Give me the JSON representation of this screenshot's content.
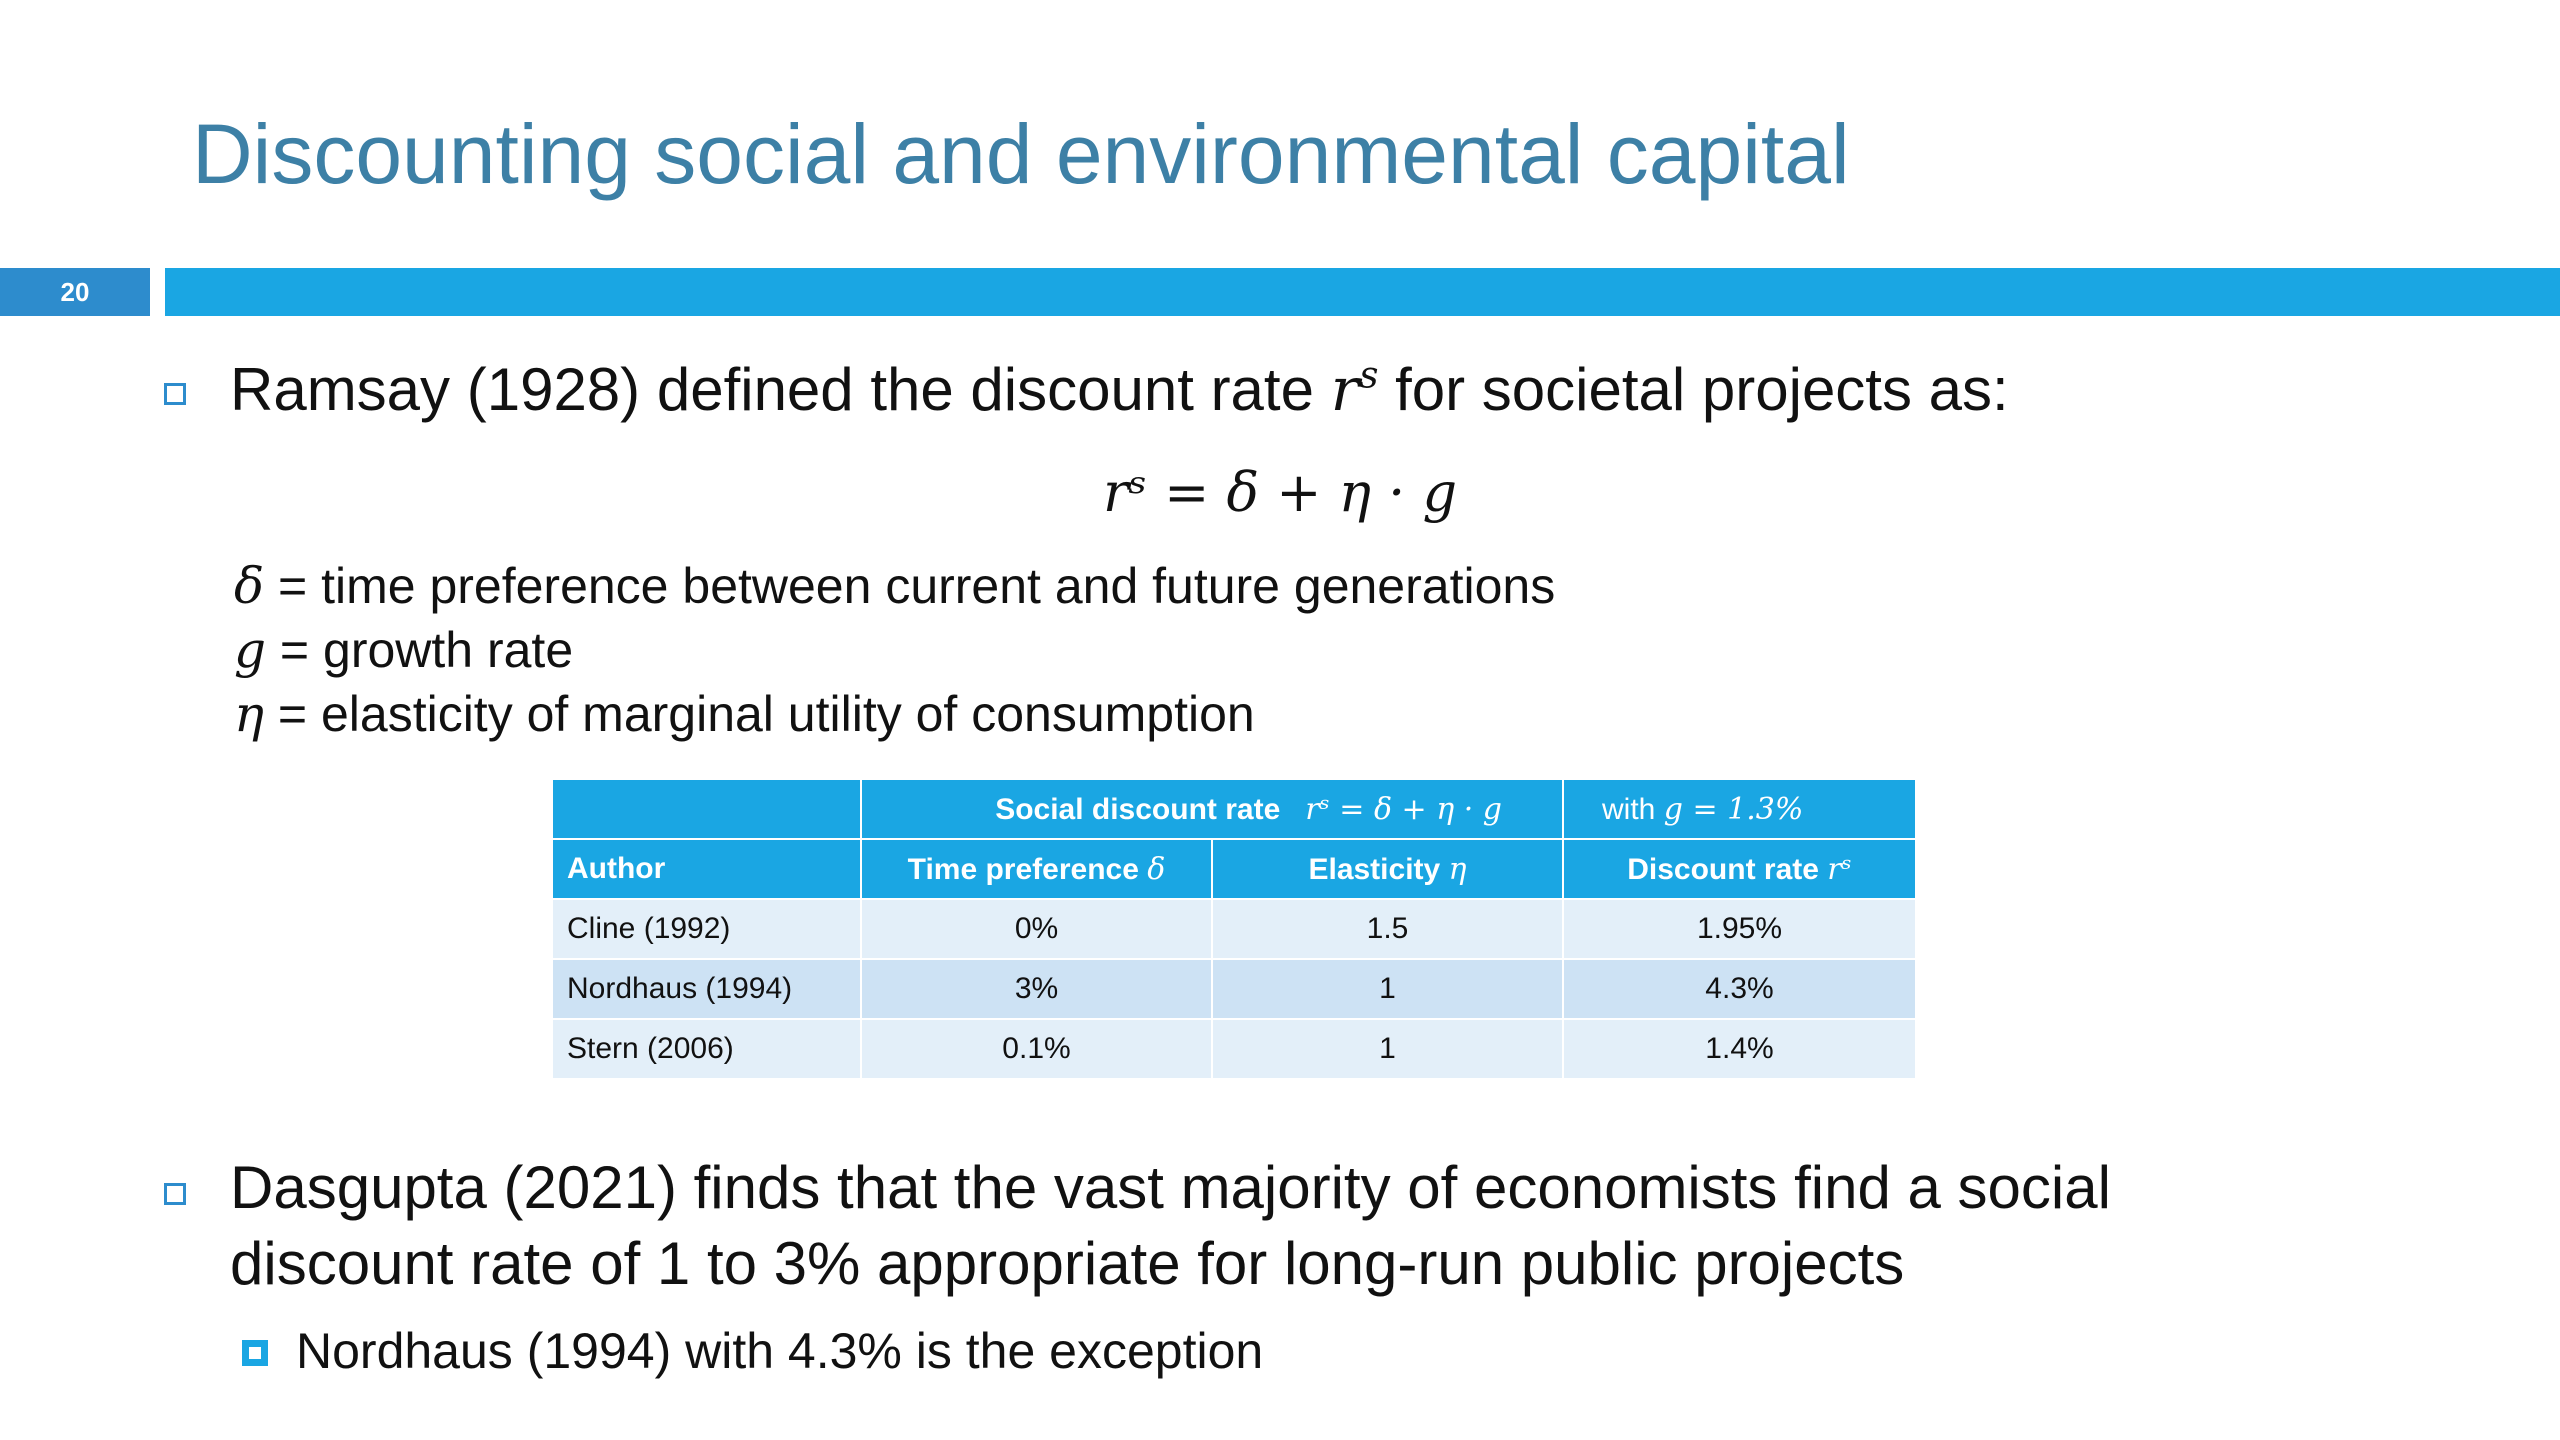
{
  "slide": {
    "title": "Discounting social and environmental capital",
    "page_number": "20",
    "accent_colors": {
      "title": "#3d80a6",
      "bar_dark": "#2d8ccd",
      "bar_light": "#1aa6e3"
    }
  },
  "bullet1": {
    "text": "Ramsay (1928) defined the discount rate",
    "var": "r",
    "var_sup": "s",
    "text_after": "for societal projects as:"
  },
  "formula": "rˢ = δ + η · g",
  "definitions": [
    {
      "symbol": "δ",
      "text": "= time preference between current and future generations"
    },
    {
      "symbol": "g",
      "text": "= growth rate"
    },
    {
      "symbol": "η",
      "text": "= elasticity of marginal utility of consumption"
    }
  ],
  "table": {
    "group_header": {
      "label": "Social discount rate",
      "formula": "rˢ = δ + η · g",
      "with_label": "with",
      "with_formula": "g = 1.3%"
    },
    "columns": [
      {
        "label": "Author",
        "symbol": ""
      },
      {
        "label": "Time preference",
        "symbol": "δ"
      },
      {
        "label": "Elasticity",
        "symbol": "η"
      },
      {
        "label": "Discount rate",
        "symbol": "rˢ"
      }
    ],
    "rows": [
      [
        "Cline (1992)",
        "0%",
        "1.5",
        "1.95%"
      ],
      [
        "Nordhaus (1994)",
        "3%",
        "1",
        "4.3%"
      ],
      [
        "Stern (2006)",
        "0.1%",
        "1",
        "1.4%"
      ]
    ]
  },
  "bullet2": {
    "line1": "Dasgupta (2021) finds that the vast majority of economists find a social",
    "line2": "discount rate of 1 to 3% appropriate for long-run public projects",
    "sub": "Nordhaus (1994) with 4.3% is the exception"
  }
}
